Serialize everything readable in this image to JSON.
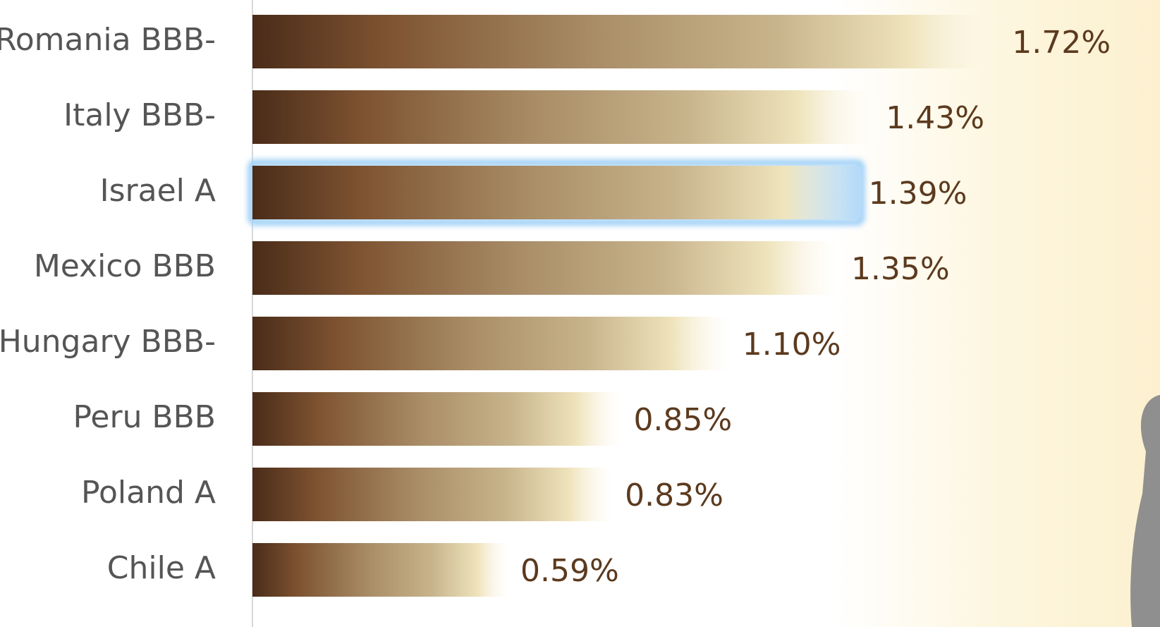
{
  "chart_data": {
    "type": "bar",
    "orientation": "horizontal",
    "categories": [
      "Romania BBB-",
      "Italy BBB-",
      "Israel A",
      "Mexico BBB",
      "Hungary BBB-",
      "Peru BBB",
      "Poland A",
      "Chile A"
    ],
    "values": [
      1.72,
      1.43,
      1.39,
      1.35,
      1.1,
      0.85,
      0.83,
      0.59
    ],
    "value_labels": [
      "1.72%",
      "1.43%",
      "1.39%",
      "1.35%",
      "1.10%",
      "0.85%",
      "0.83%",
      "0.59%"
    ],
    "highlight": 2
  }
}
